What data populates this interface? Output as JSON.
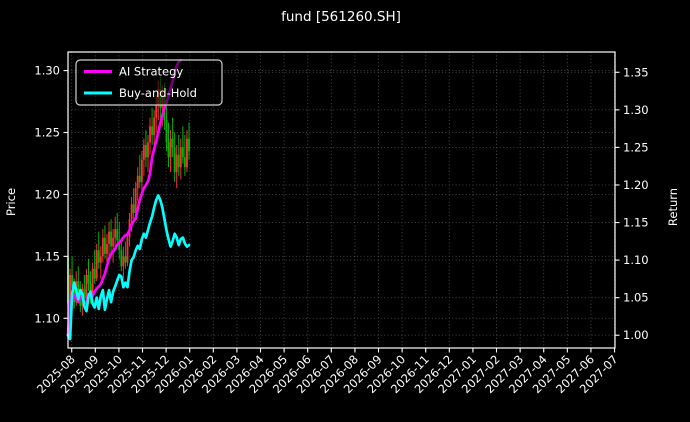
{
  "window": {
    "title": "fund [561260.SH]"
  },
  "chart_data": {
    "type": "candlestick",
    "title": "fund [561260.SH]",
    "grid": {
      "on": true,
      "color": "#4c4c4c",
      "style": "dotted"
    },
    "colors": {
      "background": "#000000",
      "axes_spine": "#ffffff",
      "text": "#ffffff",
      "up_candle": "#ef3434",
      "down_candle": "#00b400",
      "ai_strategy": "#ff00ff",
      "buy_and_hold": "#00ffff"
    },
    "left_axis": {
      "label": "Price",
      "tick_labels": [
        "1.10",
        "1.15",
        "1.20",
        "1.25",
        "1.30"
      ],
      "tick_values": [
        1.1,
        1.15,
        1.2,
        1.25,
        1.3
      ],
      "range": [
        1.076,
        1.315
      ]
    },
    "right_axis": {
      "label": "Return",
      "tick_labels": [
        "1.00",
        "1.05",
        "1.10",
        "1.15",
        "1.20",
        "1.25",
        "1.30",
        "1.35"
      ],
      "tick_values": [
        1.0,
        1.05,
        1.1,
        1.15,
        1.2,
        1.25,
        1.3,
        1.35
      ],
      "range": [
        0.983,
        1.377
      ]
    },
    "x_axis": {
      "tick_labels": [
        "2025-08",
        "2025-09",
        "2025-10",
        "2025-11",
        "2025-12",
        "2026-01",
        "2026-02",
        "2026-03",
        "2026-04",
        "2026-05",
        "2026-06",
        "2026-07",
        "2026-08",
        "2026-09",
        "2026-10",
        "2026-11",
        "2026-12",
        "2027-01",
        "2027-02",
        "2027-03",
        "2027-04",
        "2027-05",
        "2027-06",
        "2027-07"
      ],
      "range": [
        -0.157,
        23.02
      ]
    },
    "legend": {
      "position": "upper-left",
      "entries": [
        {
          "label": "AI Strategy",
          "color": "#ff00ff"
        },
        {
          "label": "Buy-and-Hold",
          "color": "#00ffff"
        }
      ]
    },
    "bars": {
      "x_start_month": -0.157,
      "x_step_month": 0.0869,
      "ohlc": [
        [
          1.15,
          1.2,
          1.1,
          1.112
        ],
        [
          1.112,
          1.14,
          1.095,
          1.135
        ],
        [
          1.135,
          1.15,
          1.12,
          1.125
        ],
        [
          1.125,
          1.132,
          1.108,
          1.113
        ],
        [
          1.113,
          1.138,
          1.11,
          1.13
        ],
        [
          1.13,
          1.142,
          1.118,
          1.122
        ],
        [
          1.122,
          1.13,
          1.105,
          1.11
        ],
        [
          1.11,
          1.128,
          1.102,
          1.124
        ],
        [
          1.124,
          1.135,
          1.112,
          1.116
        ],
        [
          1.116,
          1.14,
          1.11,
          1.135
        ],
        [
          1.135,
          1.148,
          1.122,
          1.128
        ],
        [
          1.128,
          1.138,
          1.112,
          1.118
        ],
        [
          1.118,
          1.145,
          1.115,
          1.14
        ],
        [
          1.14,
          1.155,
          1.128,
          1.132
        ],
        [
          1.132,
          1.16,
          1.13,
          1.155
        ],
        [
          1.155,
          1.17,
          1.14,
          1.145
        ],
        [
          1.145,
          1.158,
          1.132,
          1.15
        ],
        [
          1.15,
          1.172,
          1.145,
          1.165
        ],
        [
          1.165,
          1.175,
          1.148,
          1.152
        ],
        [
          1.152,
          1.168,
          1.14,
          1.16
        ],
        [
          1.16,
          1.178,
          1.15,
          1.17
        ],
        [
          1.17,
          1.18,
          1.152,
          1.158
        ],
        [
          1.158,
          1.172,
          1.145,
          1.165
        ],
        [
          1.165,
          1.182,
          1.155,
          1.172
        ],
        [
          1.172,
          1.185,
          1.158,
          1.163
        ],
        [
          1.163,
          1.178,
          1.148,
          1.155
        ],
        [
          1.155,
          1.165,
          1.138,
          1.142
        ],
        [
          1.142,
          1.158,
          1.132,
          1.15
        ],
        [
          1.15,
          1.162,
          1.14,
          1.145
        ],
        [
          1.145,
          1.17,
          1.142,
          1.165
        ],
        [
          1.165,
          1.185,
          1.158,
          1.18
        ],
        [
          1.18,
          1.198,
          1.17,
          1.192
        ],
        [
          1.192,
          1.205,
          1.178,
          1.185
        ],
        [
          1.185,
          1.21,
          1.18,
          1.205
        ],
        [
          1.205,
          1.222,
          1.195,
          1.215
        ],
        [
          1.215,
          1.232,
          1.205,
          1.21
        ],
        [
          1.21,
          1.235,
          1.2,
          1.228
        ],
        [
          1.228,
          1.245,
          1.215,
          1.24
        ],
        [
          1.24,
          1.252,
          1.222,
          1.23
        ],
        [
          1.23,
          1.248,
          1.218,
          1.242
        ],
        [
          1.242,
          1.262,
          1.232,
          1.255
        ],
        [
          1.255,
          1.27,
          1.24,
          1.248
        ],
        [
          1.248,
          1.268,
          1.238,
          1.262
        ],
        [
          1.262,
          1.28,
          1.25,
          1.272
        ],
        [
          1.272,
          1.292,
          1.26,
          1.285
        ],
        [
          1.285,
          1.295,
          1.262,
          1.27
        ],
        [
          1.27,
          1.288,
          1.255,
          1.28
        ],
        [
          1.28,
          1.29,
          1.252,
          1.26
        ],
        [
          1.26,
          1.275,
          1.235,
          1.242
        ],
        [
          1.242,
          1.258,
          1.222,
          1.23
        ],
        [
          1.23,
          1.252,
          1.218,
          1.245
        ],
        [
          1.245,
          1.262,
          1.23,
          1.238
        ],
        [
          1.238,
          1.25,
          1.21,
          1.218
        ],
        [
          1.218,
          1.24,
          1.205,
          1.232
        ],
        [
          1.232,
          1.248,
          1.215,
          1.222
        ],
        [
          1.222,
          1.245,
          1.212,
          1.238
        ],
        [
          1.238,
          1.255,
          1.225,
          1.23
        ],
        [
          1.23,
          1.248,
          1.215,
          1.222
        ],
        [
          1.222,
          1.252,
          1.218,
          1.245
        ],
        [
          1.245,
          1.258,
          1.228,
          1.235
        ]
      ]
    },
    "series": [
      {
        "name": "AI Strategy",
        "color": "#ff00ff",
        "axis": "right",
        "values": [
          1.0,
          1.045,
          1.052,
          1.05,
          1.056,
          1.044,
          1.052,
          1.049,
          1.042,
          1.045,
          1.055,
          1.055,
          1.052,
          1.058,
          1.062,
          1.065,
          1.068,
          1.075,
          1.082,
          1.092,
          1.102,
          1.108,
          1.112,
          1.115,
          1.12,
          1.123,
          1.126,
          1.13,
          1.133,
          1.134,
          1.14,
          1.147,
          1.152,
          1.155,
          1.168,
          1.18,
          1.188,
          1.196,
          1.2,
          1.205,
          1.215,
          1.237,
          1.248,
          1.258,
          1.27,
          1.282,
          1.293,
          1.302,
          1.31,
          1.318,
          1.33,
          1.338,
          1.35,
          1.358,
          1.364,
          1.366
        ]
      },
      {
        "name": "Buy-and-Hold",
        "color": "#00ffff",
        "axis": "right",
        "values": [
          1.0,
          0.995,
          1.055,
          1.07,
          1.06,
          1.048,
          1.06,
          1.055,
          1.038,
          1.032,
          1.052,
          1.058,
          1.042,
          1.037,
          1.05,
          1.035,
          1.052,
          1.06,
          1.034,
          1.048,
          1.06,
          1.044,
          1.058,
          1.065,
          1.073,
          1.08,
          1.078,
          1.064,
          1.07,
          1.064,
          1.085,
          1.1,
          1.104,
          1.113,
          1.119,
          1.115,
          1.128,
          1.135,
          1.13,
          1.14,
          1.15,
          1.158,
          1.17,
          1.18,
          1.186,
          1.18,
          1.17,
          1.155,
          1.14,
          1.128,
          1.118,
          1.125,
          1.135,
          1.13,
          1.12,
          1.128,
          1.13,
          1.122,
          1.118,
          1.12
        ]
      }
    ]
  }
}
